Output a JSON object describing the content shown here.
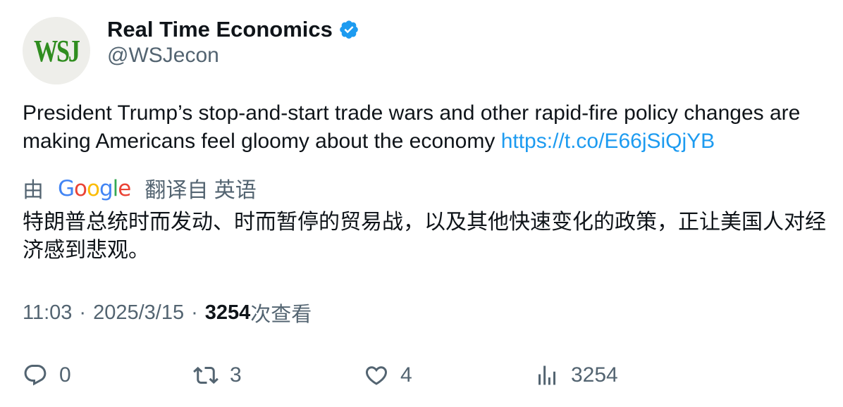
{
  "author": {
    "avatar_text": "WSJ",
    "display_name": "Real Time Economics",
    "handle": "@WSJecon"
  },
  "tweet": {
    "text": "President Trump’s stop-and-start trade wars and other rapid-fire policy changes are making Americans feel gloomy about the economy ",
    "link": "https://t.co/E66jSiQjYB"
  },
  "translation": {
    "prefix": "由",
    "provider": "Google",
    "suffix": "翻译自 英语",
    "text": "特朗普总统时而发动、时而暂停的贸易战，以及其他快速变化的政策，正让美国人对经济感到悲观。"
  },
  "meta": {
    "time": "11:03",
    "separator": "·",
    "date": "2025/3/15",
    "views": "3254",
    "views_label": "次查看"
  },
  "actions": {
    "reply_count": "0",
    "retweet_count": "3",
    "like_count": "4",
    "views_count": "3254"
  },
  "colors": {
    "link": "#1d9bf0",
    "verified": "#1d9bf0",
    "secondary_text": "#536471",
    "avatar_logo": "#2f8d1f"
  }
}
